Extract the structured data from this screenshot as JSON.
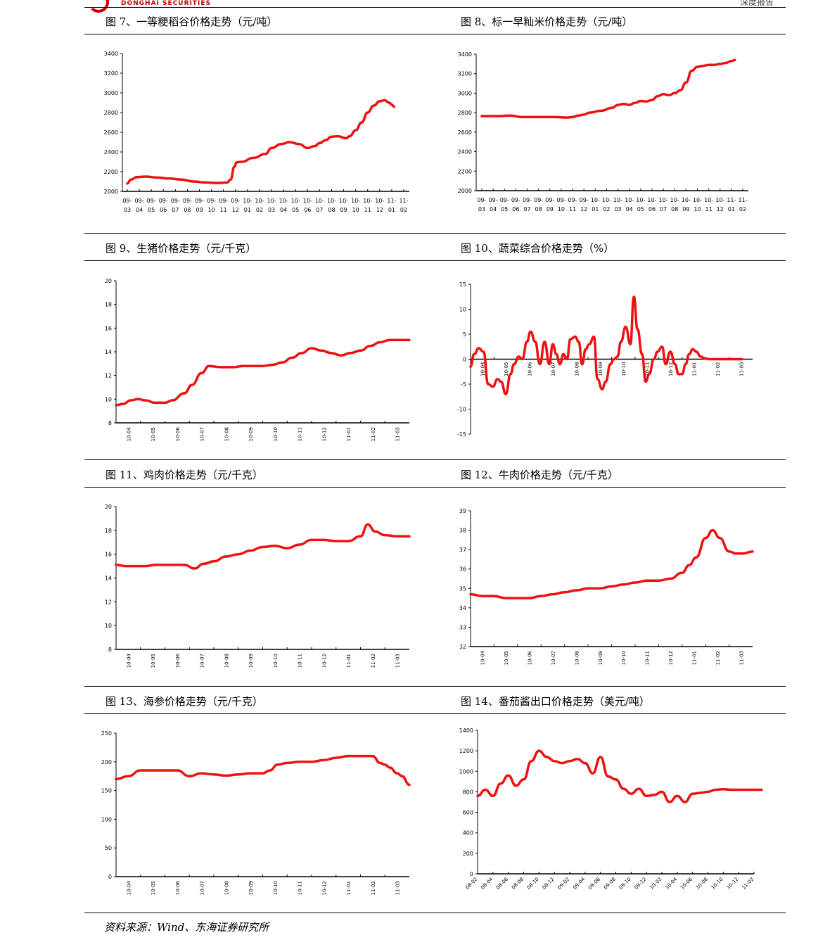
{
  "header": {
    "brand": "DONGHAI SECURITIES",
    "right_text": "深度报告"
  },
  "source": "资料来源：Wind、东海证券研究所",
  "colors": {
    "line": "#ee1111",
    "axis": "#000000",
    "brand": "#c00000"
  },
  "chart_data": [
    {
      "type": "line",
      "title": "图 7、一等粳稻谷价格走势（元/吨）",
      "x_format": "two_line",
      "categories": [
        "09-03",
        "09-04",
        "09-05",
        "09-06",
        "09-07",
        "09-08",
        "09-09",
        "09-10",
        "09-11",
        "09-12",
        "10-01",
        "10-02",
        "10-03",
        "10-04",
        "10-05",
        "10-06",
        "10-07",
        "10-08",
        "10-09",
        "10-10",
        "10-11",
        "10-12",
        "11-01",
        "11-02"
      ],
      "ylim": [
        2000,
        3400
      ],
      "yticks": [
        2000,
        2200,
        2400,
        2600,
        2800,
        3000,
        3200,
        3400
      ],
      "series": [
        {
          "x": [
            0,
            0.3,
            0.8,
            1.5,
            2.5,
            3.5,
            4.5,
            5.5,
            6.5,
            7.5,
            8.3,
            8.6,
            8.9,
            9.1,
            9.5,
            10.5,
            11.5,
            12,
            12.8,
            13.5,
            14.3,
            15,
            15.6,
            16,
            16.5,
            17,
            17.5,
            18.2,
            18.5,
            19,
            19.5,
            20,
            20.5,
            21,
            21.4,
            21.8,
            22,
            22.2
          ],
          "values": [
            2080,
            2120,
            2145,
            2150,
            2140,
            2130,
            2120,
            2100,
            2090,
            2085,
            2090,
            2120,
            2250,
            2295,
            2300,
            2340,
            2380,
            2440,
            2480,
            2500,
            2480,
            2440,
            2460,
            2490,
            2520,
            2555,
            2560,
            2540,
            2560,
            2620,
            2700,
            2800,
            2870,
            2915,
            2925,
            2900,
            2880,
            2860
          ]
        }
      ]
    },
    {
      "type": "line",
      "title": "图 8、标一早籼米价格走势（元/吨）",
      "x_format": "two_line",
      "categories": [
        "09-03",
        "09-04",
        "09-05",
        "09-06",
        "09-07",
        "09-08",
        "09-09",
        "09-10",
        "09-11",
        "09-12",
        "10-01",
        "10-02",
        "10-03",
        "10-04",
        "10-05",
        "10-06",
        "10-07",
        "10-08",
        "10-09",
        "10-10",
        "10-11",
        "10-12",
        "11-01",
        "11-02"
      ],
      "ylim": [
        2000,
        3400
      ],
      "yticks": [
        2000,
        2200,
        2400,
        2600,
        2800,
        3000,
        3200,
        3400
      ],
      "series": [
        {
          "x": [
            0,
            1.5,
            2.5,
            3.5,
            4.5,
            5.5,
            6.5,
            7.5,
            8,
            8.5,
            9,
            9.5,
            10.5,
            11.5,
            12,
            12.5,
            13,
            13.5,
            14,
            14.5,
            15,
            15.5,
            16,
            16.5,
            17,
            17.5,
            18,
            18.5,
            19,
            19.5,
            20,
            20.5,
            21,
            21.5,
            22,
            22.3
          ],
          "values": [
            2765,
            2765,
            2770,
            2755,
            2755,
            2755,
            2755,
            2750,
            2755,
            2770,
            2780,
            2800,
            2820,
            2850,
            2880,
            2890,
            2880,
            2900,
            2920,
            2915,
            2930,
            2970,
            2990,
            2980,
            3000,
            3030,
            3110,
            3230,
            3270,
            3280,
            3290,
            3290,
            3300,
            3310,
            3330,
            3340
          ]
        }
      ]
    },
    {
      "type": "line",
      "title": "图 9、生猪价格走势（元/千克）",
      "x_format": "rotated",
      "categories": [
        "10-04",
        "10-05",
        "10-06",
        "10-07",
        "10-08",
        "10-09",
        "10-10",
        "10-11",
        "10-12",
        "11-01",
        "11-02",
        "11-03"
      ],
      "ylim": [
        8,
        20
      ],
      "yticks": [
        8,
        10,
        12,
        14,
        16,
        18,
        20
      ],
      "series": [
        {
          "x": [
            0,
            0.3,
            0.6,
            0.9,
            1.2,
            1.6,
            2,
            2.3,
            2.8,
            3.1,
            3.5,
            3.8,
            4.3,
            4.8,
            5.2,
            5.6,
            6,
            6.4,
            6.8,
            7.2,
            7.6,
            8,
            8.4,
            8.8,
            9.2,
            9.6,
            10,
            10.4,
            10.8,
            11.2,
            11.6,
            12
          ],
          "values": [
            9.5,
            9.6,
            9.9,
            10,
            9.9,
            9.7,
            9.7,
            9.9,
            10.5,
            11.2,
            12.2,
            12.8,
            12.7,
            12.7,
            12.8,
            12.8,
            12.8,
            12.9,
            13.1,
            13.5,
            13.9,
            14.3,
            14.1,
            13.9,
            13.7,
            13.9,
            14.1,
            14.5,
            14.8,
            15.0,
            15.0,
            15.0
          ]
        }
      ]
    },
    {
      "type": "line",
      "title": "图 10、蔬菜综合价格走势（%）",
      "x_format": "rotated_axis",
      "categories": [
        "10-04",
        "10-05",
        "10-06",
        "10-07",
        "10-08",
        "10-09",
        "10-10",
        "10-11",
        "10-12",
        "11-01",
        "11-02",
        "11-03"
      ],
      "ylim": [
        -15,
        15
      ],
      "yticks": [
        -15,
        -10,
        -5,
        0,
        5,
        10,
        15
      ],
      "series": [
        {
          "x": [
            0,
            0.15,
            0.35,
            0.55,
            0.75,
            0.95,
            1.15,
            1.3,
            1.5,
            1.7,
            1.85,
            2.05,
            2.2,
            2.4,
            2.55,
            2.75,
            2.95,
            3.15,
            3.35,
            3.5,
            3.65,
            3.8,
            3.95,
            4.1,
            4.25,
            4.45,
            4.6,
            4.75,
            4.9,
            5.05,
            5.25,
            5.4,
            5.6,
            5.75,
            5.95,
            6.1,
            6.25,
            6.4,
            6.6,
            6.8,
            6.95,
            7.1,
            7.3,
            7.45,
            7.6,
            7.8,
            7.95,
            8.15,
            8.3,
            8.5,
            8.7,
            8.85,
            9,
            9.15,
            9.3,
            9.45,
            9.6,
            9.8,
            9.95,
            10.15,
            10.3,
            10.45,
            10.6,
            10.8,
            10.95,
            11.1,
            11.25,
            11.4,
            11.55
          ],
          "values": [
            -1.5,
            1,
            2.2,
            1.5,
            -5,
            -5.5,
            -4,
            -4.5,
            -7,
            -3,
            -1,
            0.5,
            0,
            3.5,
            5.5,
            3.5,
            -1,
            3.5,
            -1,
            3,
            1,
            -1,
            1,
            0,
            4,
            4.5,
            3.5,
            -1,
            2,
            3,
            4.5,
            -4,
            -6,
            -4.5,
            -1,
            0,
            0.5,
            3.5,
            6.5,
            3,
            12.5,
            6,
            1,
            -4.5,
            -3,
            0,
            1.5,
            2.5,
            -1,
            1.5,
            -1,
            -3,
            -3,
            -1,
            1,
            2,
            1.5,
            0.5,
            0.2,
            0,
            0,
            0,
            0,
            0,
            0,
            0,
            0,
            0,
            0
          ]
        }
      ]
    },
    {
      "type": "line",
      "title": "图 11、鸡肉价格走势（元/千克）",
      "x_format": "rotated",
      "categories": [
        "10-04",
        "10-05",
        "10-06",
        "10-07",
        "10-08",
        "10-09",
        "10-10",
        "10-11",
        "10-12",
        "11-01",
        "11-02",
        "11-03"
      ],
      "ylim": [
        8,
        20
      ],
      "yticks": [
        8,
        10,
        12,
        14,
        16,
        18,
        20
      ],
      "series": [
        {
          "x": [
            0,
            0.4,
            0.8,
            1.2,
            1.6,
            2,
            2.4,
            2.8,
            3.2,
            3.6,
            4,
            4.5,
            5,
            5.5,
            6,
            6.5,
            7,
            7.5,
            8,
            8.5,
            9,
            9.5,
            10,
            10.3,
            10.6,
            11,
            11.5,
            12
          ],
          "values": [
            15.1,
            15,
            15,
            15,
            15.1,
            15.1,
            15.1,
            15.1,
            14.8,
            15.2,
            15.4,
            15.8,
            16,
            16.3,
            16.6,
            16.7,
            16.5,
            16.8,
            17.2,
            17.2,
            17.1,
            17.1,
            17.5,
            18.5,
            17.9,
            17.6,
            17.5,
            17.5
          ]
        }
      ]
    },
    {
      "type": "line",
      "title": "图 12、牛肉价格走势（元/千克）",
      "x_format": "rotated",
      "categories": [
        "10-04",
        "10-05",
        "10-06",
        "10-07",
        "10-08",
        "10-09",
        "10-10",
        "10-11",
        "10-12",
        "11-01",
        "11-02",
        "11-03"
      ],
      "ylim": [
        32,
        39
      ],
      "yticks": [
        32,
        33,
        34,
        35,
        36,
        37,
        38,
        39
      ],
      "series": [
        {
          "x": [
            0,
            0.5,
            1,
            1.5,
            2,
            2.5,
            3,
            3.5,
            4,
            4.5,
            5,
            5.5,
            6,
            6.5,
            7,
            7.5,
            8,
            8.5,
            9,
            9.3,
            9.6,
            10,
            10.3,
            10.6,
            11,
            11.3,
            11.6,
            12
          ],
          "values": [
            34.7,
            34.6,
            34.6,
            34.5,
            34.5,
            34.5,
            34.6,
            34.7,
            34.8,
            34.9,
            35,
            35,
            35.1,
            35.2,
            35.3,
            35.4,
            35.4,
            35.5,
            35.8,
            36.2,
            36.6,
            37.6,
            38,
            37.6,
            36.9,
            36.8,
            36.8,
            36.9
          ]
        }
      ]
    },
    {
      "type": "line",
      "title": "图 13、海参价格走势（元/千克）",
      "x_format": "rotated",
      "categories": [
        "10-04",
        "10-05",
        "10-06",
        "10-07",
        "10-08",
        "10-09",
        "10-10",
        "10-11",
        "10-12",
        "11-01",
        "11-02",
        "11-03"
      ],
      "ylim": [
        0,
        250
      ],
      "yticks": [
        0,
        50,
        100,
        150,
        200,
        250
      ],
      "series": [
        {
          "x": [
            0,
            0.5,
            1,
            1.5,
            2,
            2.5,
            3,
            3.5,
            4,
            4.5,
            5,
            5.5,
            6,
            6.3,
            6.6,
            7,
            7.5,
            8,
            8.5,
            9,
            9.5,
            10,
            10.5,
            10.8,
            11,
            11.2,
            11.5,
            11.7,
            12
          ],
          "values": [
            170,
            175,
            185,
            185,
            185,
            185,
            175,
            180,
            178,
            176,
            178,
            180,
            180,
            185,
            195,
            198,
            200,
            200,
            203,
            207,
            210,
            210,
            210,
            198,
            195,
            190,
            180,
            175,
            160
          ]
        }
      ]
    },
    {
      "type": "line",
      "title": "图 14、番茄酱出口价格走势（美元/吨）",
      "x_format": "diag",
      "categories": [
        "08-02",
        "08-04",
        "08-06",
        "08-08",
        "08-10",
        "08-12",
        "09-02",
        "09-04",
        "09-06",
        "09-08",
        "09-10",
        "09-12",
        "10-02",
        "10-04",
        "10-06",
        "10-08",
        "10-10",
        "10-12",
        "11-02"
      ],
      "ylim": [
        0,
        1400
      ],
      "yticks": [
        0,
        200,
        400,
        600,
        800,
        1000,
        1200,
        1400
      ],
      "series": [
        {
          "x": [
            0,
            0.5,
            1,
            1.5,
            2,
            2.5,
            3,
            3.5,
            4,
            4.5,
            5,
            5.5,
            6,
            6.5,
            7,
            7.5,
            8,
            8.5,
            9,
            9.5,
            10,
            10.5,
            11,
            11.5,
            12,
            12.5,
            13,
            13.5,
            14,
            14.5,
            15,
            15.5,
            16,
            16.5,
            17,
            17.5,
            18,
            18.5
          ],
          "values": [
            760,
            820,
            760,
            880,
            960,
            860,
            920,
            1100,
            1200,
            1140,
            1100,
            1080,
            1100,
            1120,
            1080,
            980,
            1140,
            950,
            920,
            830,
            780,
            830,
            760,
            770,
            800,
            700,
            760,
            700,
            780,
            790,
            800,
            820,
            825,
            820,
            820,
            820,
            820,
            820
          ]
        }
      ]
    }
  ]
}
